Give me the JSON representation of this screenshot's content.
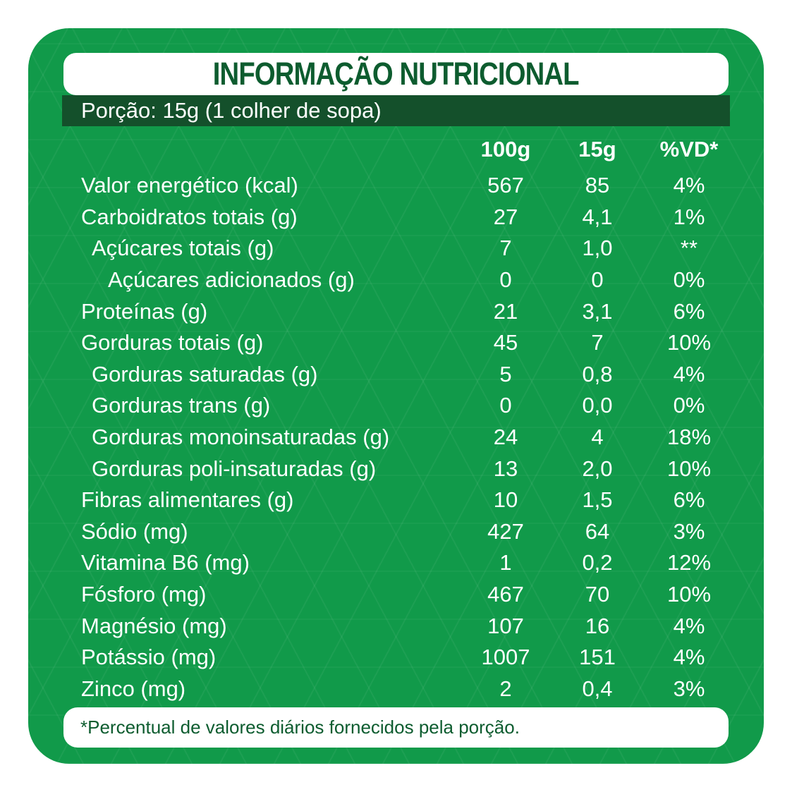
{
  "header": {
    "title": "INFORMAÇÃO NUTRICIONAL"
  },
  "serving": {
    "text": "Porção: 15g (1 colher de sopa)"
  },
  "columns": [
    "100g",
    "15g",
    "%VD*"
  ],
  "rows": [
    {
      "label": "Valor energético (kcal)",
      "indent": 0,
      "v100": "567",
      "v15": "85",
      "vd": "4%"
    },
    {
      "label": "Carboidratos totais (g)",
      "indent": 0,
      "v100": "27",
      "v15": "4,1",
      "vd": "1%"
    },
    {
      "label": "Açúcares totais (g)",
      "indent": 1,
      "v100": "7",
      "v15": "1,0",
      "vd": "**"
    },
    {
      "label": "Açúcares adicionados (g)",
      "indent": 2,
      "v100": "0",
      "v15": "0",
      "vd": "0%"
    },
    {
      "label": "Proteínas (g)",
      "indent": 0,
      "v100": "21",
      "v15": "3,1",
      "vd": "6%"
    },
    {
      "label": "Gorduras totais (g)",
      "indent": 0,
      "v100": "45",
      "v15": "7",
      "vd": "10%"
    },
    {
      "label": "Gorduras saturadas (g)",
      "indent": 1,
      "v100": "5",
      "v15": "0,8",
      "vd": "4%"
    },
    {
      "label": "Gorduras trans (g)",
      "indent": 1,
      "v100": "0",
      "v15": "0,0",
      "vd": "0%"
    },
    {
      "label": "Gorduras monoinsaturadas (g)",
      "indent": 1,
      "v100": "24",
      "v15": "4",
      "vd": "18%"
    },
    {
      "label": "Gorduras poli-insaturadas (g)",
      "indent": 1,
      "v100": "13",
      "v15": "2,0",
      "vd": "10%"
    },
    {
      "label": "Fibras alimentares (g)",
      "indent": 0,
      "v100": "10",
      "v15": "1,5",
      "vd": "6%"
    },
    {
      "label": "Sódio (mg)",
      "indent": 0,
      "v100": "427",
      "v15": "64",
      "vd": "3%"
    },
    {
      "label": "Vitamina B6 (mg)",
      "indent": 0,
      "v100": "1",
      "v15": "0,2",
      "vd": "12%"
    },
    {
      "label": "Fósforo (mg)",
      "indent": 0,
      "v100": "467",
      "v15": "70",
      "vd": "10%"
    },
    {
      "label": "Magnésio (mg)",
      "indent": 0,
      "v100": "107",
      "v15": "16",
      "vd": "4%"
    },
    {
      "label": "Potássio (mg)",
      "indent": 0,
      "v100": "1007",
      "v15": "151",
      "vd": "4%"
    },
    {
      "label": "Zinco (mg)",
      "indent": 0,
      "v100": "2",
      "v15": "0,4",
      "vd": "3%"
    }
  ],
  "footer": {
    "note": "*Percentual de valores diários fornecidos pela porção."
  },
  "colors": {
    "card_green": "#119a4a",
    "dark_green_bar": "#14502b",
    "heading_green": "#0d5c2f",
    "text_white": "#ffffff"
  }
}
